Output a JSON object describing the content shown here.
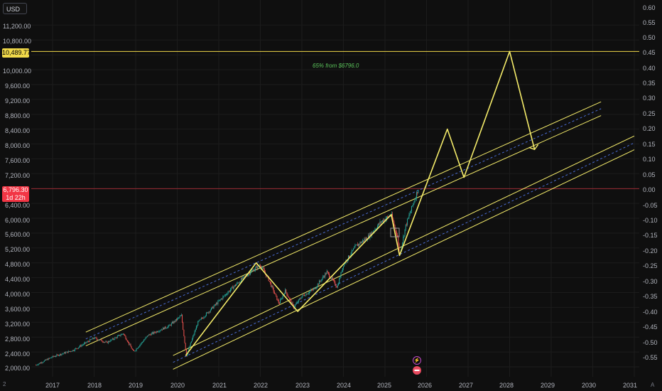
{
  "currency_button": "USD",
  "left_axis": {
    "ticks": [
      "11,200.00",
      "10,800.00",
      "10,000.00",
      "9,600.00",
      "9,200.00",
      "8,800.00",
      "8,400.00",
      "8,000.00",
      "7,600.00",
      "7,200.00",
      "6,400.00",
      "6,000.00",
      "5,600.00",
      "5,200.00",
      "4,800.00",
      "4,400.00",
      "4,000.00",
      "3,600.00",
      "3,200.00",
      "2,800.00",
      "2,400.00",
      "2,000.00"
    ],
    "target_label": "10,489.77",
    "price_label": "6,796.30",
    "countdown_label": "1d 22h"
  },
  "right_axis": {
    "ticks": [
      "0.60",
      "0.55",
      "0.50",
      "0.45",
      "0.40",
      "0.35",
      "0.30",
      "0.25",
      "0.20",
      "0.15",
      "0.10",
      "0.05",
      "0.00",
      "-0.05",
      "-0.10",
      "-0.15",
      "-0.20",
      "-0.25",
      "-0.30",
      "-0.35",
      "-0.40",
      "-0.45",
      "-0.50",
      "-0.55"
    ]
  },
  "x_axis": {
    "first_tick": "2",
    "ticks": [
      "2017",
      "2018",
      "2019",
      "2020",
      "2021",
      "2022",
      "2023",
      "2024",
      "2025",
      "2026",
      "2027",
      "2028",
      "2029",
      "2030",
      "2031"
    ]
  },
  "annotation": "65% from $6796.0",
  "corner_mark": "A",
  "colors": {
    "background": "#0f0f0f",
    "up_candle": "#26a69a",
    "down_candle": "#ef5350",
    "drawing": "#f5ec6a",
    "channel_mid": "#4a6cd4",
    "target_line": "#f0d94a",
    "price_line": "#f23645",
    "annotation": "#5bc45b"
  },
  "icons": [
    "flash-event-icon",
    "us-flag-event-icon",
    "chevron-arrow-icon"
  ],
  "chart_data": {
    "type": "line",
    "title": "",
    "xlabel": "",
    "ylabel": "",
    "x_range": [
      2016.5,
      2031
    ],
    "y_range_left": [
      1900,
      11500
    ],
    "y_range_right": [
      -0.6,
      0.62
    ],
    "reference_lines": [
      {
        "value": 10489.77,
        "label": "10,489.77"
      },
      {
        "value": 6796.3,
        "label": "6,796.30"
      }
    ],
    "series": [
      {
        "points": [
          [
            2016.6,
            2050
          ],
          [
            2017.0,
            2270
          ],
          [
            2017.5,
            2450
          ],
          [
            2018.0,
            2780
          ],
          [
            2018.3,
            2650
          ],
          [
            2018.7,
            2900
          ],
          [
            2018.95,
            2400
          ],
          [
            2019.3,
            2850
          ],
          [
            2019.8,
            3100
          ],
          [
            2020.1,
            3380
          ],
          [
            2020.22,
            2300
          ],
          [
            2020.5,
            3200
          ],
          [
            2020.9,
            3650
          ],
          [
            2021.3,
            4100
          ],
          [
            2021.7,
            4500
          ],
          [
            2022.0,
            4750
          ],
          [
            2022.2,
            4350
          ],
          [
            2022.45,
            3700
          ],
          [
            2022.6,
            4050
          ],
          [
            2022.8,
            3600
          ],
          [
            2023.0,
            3900
          ],
          [
            2023.3,
            4100
          ],
          [
            2023.6,
            4550
          ],
          [
            2023.85,
            4150
          ],
          [
            2024.0,
            4750
          ],
          [
            2024.3,
            5250
          ],
          [
            2024.6,
            5500
          ],
          [
            2024.9,
            5900
          ],
          [
            2025.15,
            6100
          ],
          [
            2025.3,
            5500
          ],
          [
            2025.35,
            5000
          ],
          [
            2025.5,
            5800
          ],
          [
            2025.65,
            6300
          ],
          [
            2025.8,
            6796
          ]
        ]
      },
      {
        "points": [
          [
            2020.2,
            2300
          ],
          [
            2021.9,
            4800
          ],
          [
            2022.9,
            3490
          ],
          [
            2025.15,
            6100
          ],
          [
            2025.35,
            5000
          ],
          [
            2026.5,
            8400
          ],
          [
            2026.9,
            7100
          ],
          [
            2028.0,
            10490
          ],
          [
            2028.6,
            7850
          ]
        ]
      }
    ],
    "channels": [
      {
        "start": [
          2017.8,
          2750
        ],
        "end": [
          2030.2,
          8950
        ],
        "offset": 185
      },
      {
        "start": [
          2019.9,
          2120
        ],
        "end": [
          2031.0,
          8030
        ],
        "offset": 185
      }
    ]
  }
}
